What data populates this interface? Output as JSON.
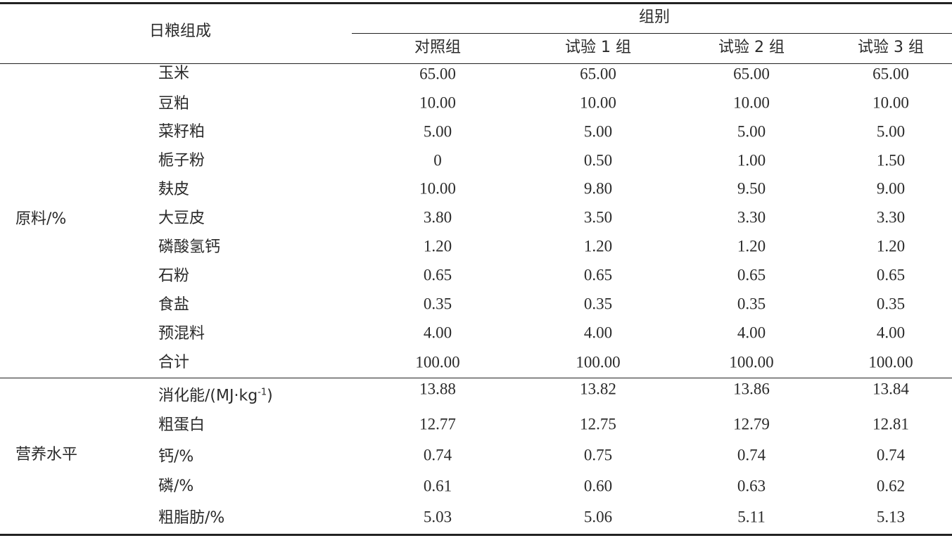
{
  "header": {
    "title": "日粮组成",
    "group_title": "组别",
    "columns": [
      "对照组",
      "试验 1 组",
      "试验 2 组",
      "试验 3 组"
    ]
  },
  "sections": [
    {
      "label": "原料/%",
      "rows": [
        {
          "item": "玉米",
          "values": [
            "65.00",
            "65.00",
            "65.00",
            "65.00"
          ]
        },
        {
          "item": "豆粕",
          "values": [
            "10.00",
            "10.00",
            "10.00",
            "10.00"
          ]
        },
        {
          "item": "菜籽粕",
          "values": [
            "5.00",
            "5.00",
            "5.00",
            "5.00"
          ]
        },
        {
          "item": "栀子粉",
          "values": [
            "0",
            "0.50",
            "1.00",
            "1.50"
          ]
        },
        {
          "item": "麸皮",
          "values": [
            "10.00",
            "9.80",
            "9.50",
            "9.00"
          ]
        },
        {
          "item": "大豆皮",
          "values": [
            "3.80",
            "3.50",
            "3.30",
            "3.30"
          ]
        },
        {
          "item": "磷酸氢钙",
          "values": [
            "1.20",
            "1.20",
            "1.20",
            "1.20"
          ]
        },
        {
          "item": "石粉",
          "values": [
            "0.65",
            "0.65",
            "0.65",
            "0.65"
          ]
        },
        {
          "item": "食盐",
          "values": [
            "0.35",
            "0.35",
            "0.35",
            "0.35"
          ]
        },
        {
          "item": "预混料",
          "values": [
            "4.00",
            "4.00",
            "4.00",
            "4.00"
          ]
        },
        {
          "item": "合计",
          "values": [
            "100.00",
            "100.00",
            "100.00",
            "100.00"
          ]
        }
      ]
    },
    {
      "label": "营养水平",
      "rows": [
        {
          "item": "消化能/(MJ·kg",
          "item_sup": "-1",
          "item_tail": ")",
          "values": [
            "13.88",
            "13.82",
            "13.86",
            "13.84"
          ]
        },
        {
          "item": "粗蛋白",
          "values": [
            "12.77",
            "12.75",
            "12.79",
            "12.81"
          ]
        },
        {
          "item": "钙/%",
          "values": [
            "0.74",
            "0.75",
            "0.74",
            "0.74"
          ]
        },
        {
          "item": "磷/%",
          "values": [
            "0.61",
            "0.60",
            "0.63",
            "0.62"
          ]
        },
        {
          "item": "粗脂肪/%",
          "values": [
            "5.03",
            "5.06",
            "5.11",
            "5.13"
          ]
        }
      ]
    }
  ]
}
